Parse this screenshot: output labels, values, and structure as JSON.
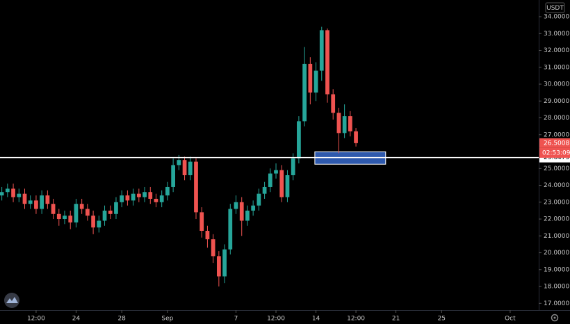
{
  "chart_data": {
    "type": "candlestick",
    "currency": "USDT",
    "up_color": "#26a69a",
    "down_color": "#ef5350",
    "zone_color": "#3a6fd8",
    "level_color": "#ffffff",
    "xlim": [
      -2.66,
      44.5
    ],
    "ylim": [
      16.6,
      34.99
    ],
    "xticks": [
      {
        "value": 0.5,
        "label": "12:00"
      },
      {
        "value": 4,
        "label": "24"
      },
      {
        "value": 8,
        "label": "28"
      },
      {
        "value": 12,
        "label": "Sep"
      },
      {
        "value": 18,
        "label": "7"
      },
      {
        "value": 21.5,
        "label": "12:00"
      },
      {
        "value": 25,
        "label": "14"
      },
      {
        "value": 28.5,
        "label": "12:00"
      },
      {
        "value": 32,
        "label": "21"
      },
      {
        "value": 36,
        "label": "25"
      },
      {
        "value": 42,
        "label": "Oct"
      }
    ],
    "yticks": [
      {
        "value": 17,
        "label": "17.0000"
      },
      {
        "value": 18,
        "label": "18.0000"
      },
      {
        "value": 19,
        "label": "19.0000"
      },
      {
        "value": 20,
        "label": "20.0000"
      },
      {
        "value": 21,
        "label": "21.0000"
      },
      {
        "value": 22,
        "label": "22.0000"
      },
      {
        "value": 23,
        "label": "23.0000"
      },
      {
        "value": 24,
        "label": "24.0000"
      },
      {
        "value": 25,
        "label": "25.0000"
      },
      {
        "value": 27,
        "label": "27.0000"
      },
      {
        "value": 28,
        "label": "28.0000"
      },
      {
        "value": 29,
        "label": "29.0000"
      },
      {
        "value": 30,
        "label": "30.0000"
      },
      {
        "value": 31,
        "label": "31.0000"
      },
      {
        "value": 32,
        "label": "32.0000"
      },
      {
        "value": 33,
        "label": "33.0000"
      },
      {
        "value": 34,
        "label": "34.0000"
      }
    ],
    "x": [
      -2.5,
      -2,
      -1.5,
      -1,
      -0.5,
      0,
      0.5,
      1,
      1.5,
      2,
      2.5,
      3,
      3.5,
      4,
      4.5,
      5,
      5.5,
      6,
      6.5,
      7,
      7.5,
      8,
      8.5,
      9,
      9.5,
      10,
      10.5,
      11,
      11.5,
      12,
      12.5,
      13,
      13.5,
      14,
      14.5,
      15,
      15.5,
      16,
      16.5,
      17,
      17.5,
      18,
      18.5,
      19,
      19.5,
      20,
      20.5,
      21,
      21.5,
      22,
      22.5,
      23,
      23.5,
      24,
      24.5,
      25,
      25.5,
      26,
      26.5,
      27,
      27.5,
      28,
      28.5
    ],
    "open": [
      23.4,
      23.6,
      23.8,
      23.3,
      23.5,
      22.9,
      23.1,
      22.6,
      23.4,
      22.9,
      22.3,
      22.0,
      22.2,
      21.8,
      22.9,
      22.6,
      22.2,
      21.5,
      21.9,
      22.5,
      22.3,
      23.0,
      23.4,
      23.1,
      23.5,
      23.3,
      23.6,
      23.2,
      23.0,
      23.4,
      23.9,
      25.2,
      25.5,
      24.6,
      25.4,
      22.4,
      21.3,
      20.8,
      19.8,
      18.6,
      20.2,
      22.6,
      23.0,
      21.9,
      22.5,
      22.8,
      23.5,
      23.9,
      24.7,
      24.9,
      23.3,
      24.6,
      25.6,
      27.8,
      31.2,
      29.5,
      30.8,
      33.2,
      29.4,
      28.3,
      27.1,
      28.1,
      27.2
    ],
    "high": [
      23.9,
      24.1,
      24.1,
      23.8,
      23.8,
      23.4,
      23.4,
      23.7,
      23.7,
      23.2,
      22.6,
      22.5,
      22.5,
      23.2,
      23.2,
      22.9,
      22.5,
      22.2,
      22.8,
      22.8,
      23.3,
      23.7,
      23.7,
      23.8,
      23.8,
      23.9,
      23.9,
      23.5,
      23.7,
      24.2,
      25.6,
      25.8,
      25.7,
      25.7,
      25.6,
      22.7,
      21.6,
      21.1,
      20.1,
      20.5,
      22.9,
      23.4,
      23.3,
      22.8,
      23.1,
      23.8,
      24.2,
      25.0,
      25.3,
      25.2,
      24.9,
      25.9,
      28.1,
      32.2,
      31.6,
      31.3,
      33.4,
      33.3,
      29.7,
      28.6,
      28.8,
      28.4,
      27.4
    ],
    "low": [
      23.1,
      23.3,
      23.0,
      23.0,
      22.6,
      22.6,
      22.3,
      22.3,
      22.6,
      22.0,
      21.6,
      21.7,
      21.4,
      21.5,
      22.3,
      21.9,
      21.1,
      21.2,
      21.6,
      22.0,
      22.0,
      22.7,
      22.8,
      22.8,
      23.0,
      23.0,
      22.9,
      22.7,
      22.7,
      23.1,
      23.6,
      24.9,
      24.3,
      24.3,
      22.0,
      20.9,
      20.3,
      19.4,
      18.0,
      18.2,
      19.9,
      22.3,
      21.0,
      21.6,
      22.2,
      22.5,
      23.2,
      23.6,
      24.4,
      23.0,
      23.0,
      24.3,
      25.3,
      27.5,
      28.8,
      29.0,
      30.2,
      28.9,
      27.9,
      25.9,
      26.8,
      26.9,
      26.3
    ],
    "close": [
      23.6,
      23.8,
      23.3,
      23.5,
      22.9,
      23.1,
      22.6,
      23.4,
      22.9,
      22.3,
      22.0,
      22.2,
      21.8,
      22.9,
      22.6,
      22.2,
      21.5,
      21.9,
      22.5,
      22.3,
      23.0,
      23.4,
      23.1,
      23.5,
      23.3,
      23.6,
      23.2,
      23.0,
      23.4,
      23.9,
      25.2,
      25.5,
      24.6,
      25.4,
      22.4,
      21.3,
      20.8,
      19.8,
      18.6,
      20.2,
      22.6,
      23.0,
      21.9,
      22.5,
      22.8,
      23.5,
      23.9,
      24.7,
      24.9,
      23.3,
      24.6,
      25.6,
      27.8,
      31.2,
      29.5,
      30.8,
      33.2,
      29.4,
      28.3,
      27.1,
      28.1,
      27.2,
      26.5008
    ],
    "level": 25.6475,
    "last_price": 26.5008,
    "countdown": "02:53:09",
    "zone": {
      "low": 25.25,
      "high": 25.99,
      "x_start": 24.9,
      "x_end": 31.1
    }
  }
}
